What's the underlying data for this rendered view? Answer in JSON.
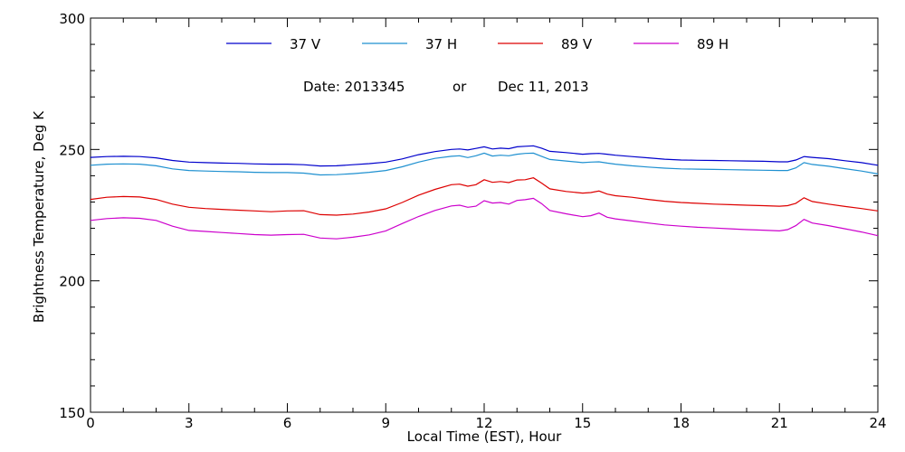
{
  "chart_data": {
    "type": "line",
    "title": "",
    "xlabel": "Local Time (EST), Hour",
    "ylabel": "Brightness Temperature, Deg K",
    "xlim": [
      0,
      24
    ],
    "ylim": [
      150,
      300
    ],
    "xticks": [
      0,
      3,
      6,
      9,
      12,
      15,
      18,
      21,
      24
    ],
    "yticks": [
      150,
      200,
      250,
      300
    ],
    "grid": false,
    "legend_position": "top",
    "annotation": {
      "date_label": "Date: 2013345",
      "or_label": "or",
      "date_text": "Dec 11, 2013"
    },
    "x": [
      0,
      0.5,
      1,
      1.5,
      2,
      2.5,
      3,
      3.5,
      4,
      4.5,
      5,
      5.5,
      6,
      6.5,
      7,
      7.5,
      8,
      8.5,
      9,
      9.5,
      10,
      10.5,
      11,
      11.25,
      11.5,
      11.75,
      12,
      12.25,
      12.5,
      12.75,
      13,
      13.25,
      13.5,
      13.75,
      14,
      14.5,
      15,
      15.25,
      15.5,
      15.75,
      16,
      16.5,
      17,
      17.5,
      18,
      18.5,
      19,
      19.5,
      20,
      20.5,
      21,
      21.25,
      21.5,
      21.75,
      22,
      22.5,
      23,
      23.5,
      24
    ],
    "series": [
      {
        "name": "37 V",
        "color": "#0000cc",
        "values": [
          247,
          247.3,
          247.4,
          247.3,
          246.8,
          245.8,
          245.2,
          245,
          244.8,
          244.7,
          244.5,
          244.4,
          244.4,
          244.2,
          243.7,
          243.8,
          244.2,
          244.6,
          245.2,
          246.4,
          248,
          249.2,
          250,
          250.2,
          249.8,
          250.4,
          251,
          250.2,
          250.5,
          250.3,
          251,
          251.2,
          251.4,
          250.5,
          249.3,
          248.8,
          248.2,
          248.4,
          248.5,
          248.2,
          247.8,
          247.3,
          246.8,
          246.3,
          246,
          245.9,
          245.8,
          245.7,
          245.6,
          245.5,
          245.3,
          245.3,
          246,
          247.3,
          247,
          246.5,
          245.7,
          245,
          244
        ]
      },
      {
        "name": "37 H",
        "color": "#1e90d0",
        "values": [
          244,
          244.4,
          244.5,
          244.4,
          243.8,
          242.6,
          242,
          241.8,
          241.6,
          241.5,
          241.3,
          241.2,
          241.2,
          241,
          240.3,
          240.4,
          240.8,
          241.3,
          242,
          243.4,
          245.2,
          246.6,
          247.4,
          247.6,
          246.9,
          247.6,
          248.6,
          247.5,
          247.8,
          247.6,
          248.2,
          248.5,
          248.6,
          247.4,
          246.2,
          245.6,
          245,
          245.2,
          245.3,
          244.8,
          244.4,
          243.8,
          243.3,
          242.9,
          242.6,
          242.5,
          242.4,
          242.3,
          242.2,
          242.1,
          242,
          242,
          243,
          245,
          244.3,
          243.6,
          242.7,
          241.8,
          240.7
        ]
      },
      {
        "name": "89 V",
        "color": "#dd0000",
        "values": [
          231,
          231.8,
          232.1,
          231.9,
          231,
          229.2,
          228,
          227.5,
          227.2,
          226.9,
          226.6,
          226.3,
          226.6,
          226.7,
          225.2,
          225,
          225.4,
          226.2,
          227.4,
          229.8,
          232.6,
          234.8,
          236.6,
          236.8,
          236,
          236.6,
          238.5,
          237.5,
          237.8,
          237.4,
          238.4,
          238.5,
          239.2,
          237.2,
          235,
          234,
          233.4,
          233.6,
          234.2,
          233,
          232.4,
          231.8,
          231,
          230.3,
          229.8,
          229.5,
          229.2,
          229,
          228.8,
          228.6,
          228.4,
          228.6,
          229.5,
          231.6,
          230.2,
          229.2,
          228.3,
          227.5,
          226.6
        ]
      },
      {
        "name": "89 H",
        "color": "#cc00cc",
        "values": [
          223,
          223.7,
          224,
          223.8,
          223,
          220.8,
          219.2,
          218.8,
          218.4,
          218,
          217.6,
          217.4,
          217.6,
          217.7,
          216.3,
          216,
          216.6,
          217.5,
          219,
          221.8,
          224.5,
          226.8,
          228.5,
          228.8,
          228,
          228.4,
          230.5,
          229.6,
          229.8,
          229.2,
          230.6,
          230.9,
          231.4,
          229.4,
          226.8,
          225.5,
          224.4,
          224.8,
          225.8,
          224.2,
          223.6,
          222.8,
          222,
          221.3,
          220.8,
          220.4,
          220.1,
          219.8,
          219.5,
          219.3,
          219,
          219.5,
          221,
          223.4,
          222,
          221,
          219.8,
          218.6,
          217.2
        ]
      }
    ]
  }
}
